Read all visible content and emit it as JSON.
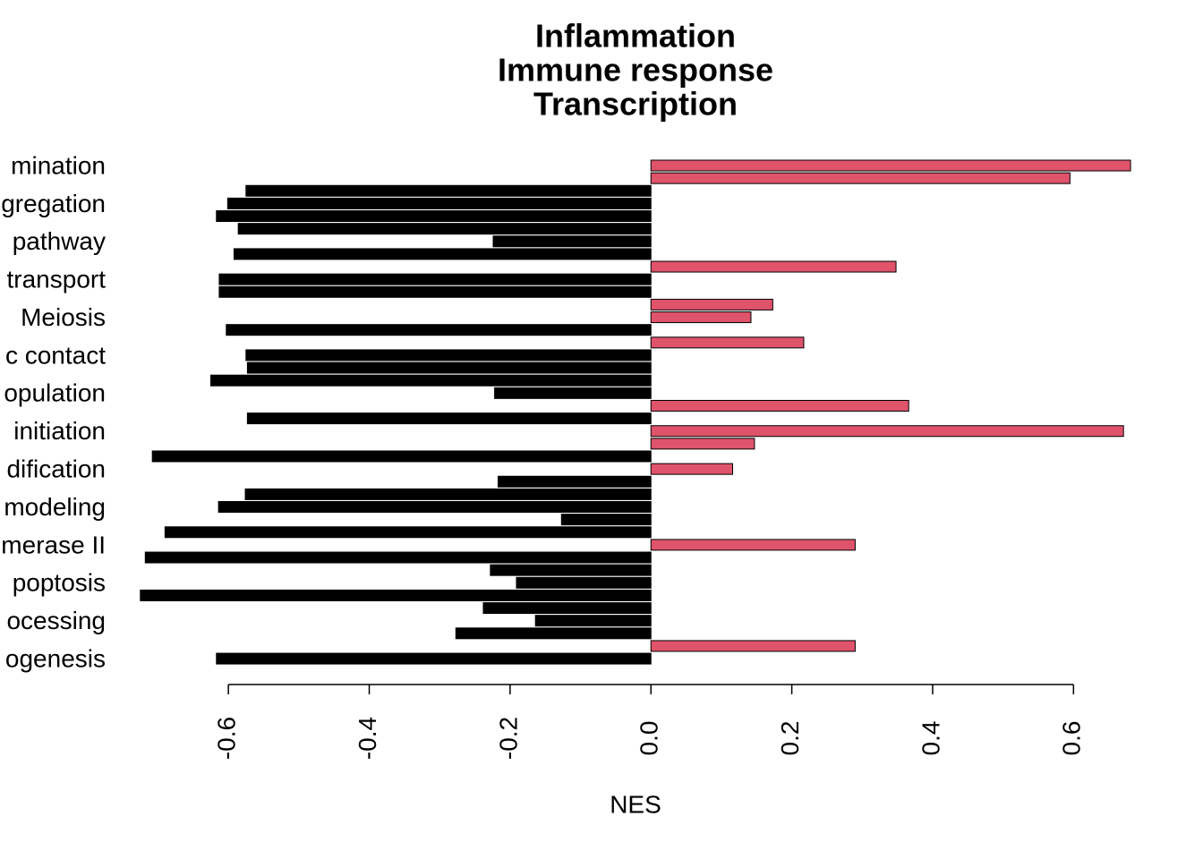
{
  "chart_data": {
    "type": "barh",
    "title": [
      "Inflammation",
      "Immune response",
      "Transcription"
    ],
    "xlabel": "NES",
    "categories": [
      "mination",
      null,
      null,
      "gregation",
      null,
      null,
      "pathway",
      null,
      null,
      "transport",
      null,
      null,
      "Meiosis",
      null,
      null,
      "c contact",
      null,
      null,
      "opulation",
      null,
      null,
      "initiation",
      null,
      null,
      "dification",
      null,
      null,
      "modeling",
      null,
      null,
      "merase II",
      null,
      null,
      "poptosis",
      null,
      null,
      "ocessing",
      null,
      null,
      "ogenesis"
    ],
    "values": [
      0.681,
      0.595,
      -0.575,
      -0.601,
      -0.617,
      -0.586,
      -0.224,
      -0.592,
      0.348,
      -0.613,
      -0.613,
      0.173,
      0.142,
      -0.603,
      0.217,
      -0.575,
      -0.573,
      -0.625,
      -0.222,
      0.366,
      -0.573,
      0.671,
      0.147,
      -0.708,
      0.116,
      -0.217,
      -0.576,
      -0.614,
      -0.127,
      -0.69,
      0.29,
      -0.718,
      -0.228,
      -0.191,
      -0.725,
      -0.238,
      -0.164,
      -0.277,
      0.29,
      -0.617
    ],
    "positive_color": "#DF536B",
    "negative_color": "#000000",
    "xlim": [
      -0.74,
      0.7
    ],
    "xticks": [
      {
        "value": -0.6,
        "label": "-0.6"
      },
      {
        "value": -0.4,
        "label": "-0.4"
      },
      {
        "value": -0.2,
        "label": "-0.2"
      },
      {
        "value": 0,
        "label": "0.0"
      },
      {
        "value": 0.2,
        "label": "0.2"
      },
      {
        "value": 0.4,
        "label": "0.4"
      },
      {
        "value": 0.6,
        "label": "0.6"
      }
    ]
  }
}
